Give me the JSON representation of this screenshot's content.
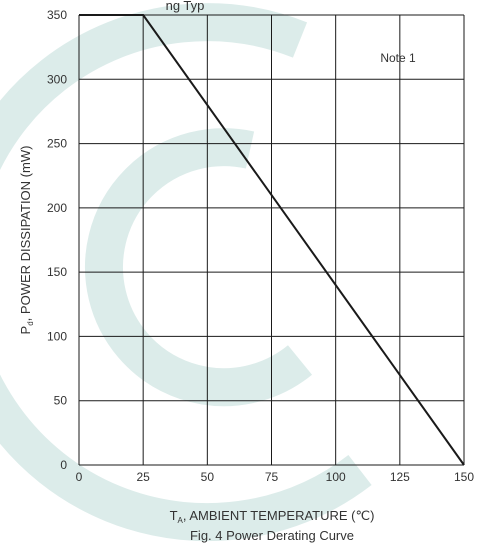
{
  "chart_data": {
    "type": "line",
    "xlim": [
      0,
      150
    ],
    "ylim": [
      0,
      350
    ],
    "x_ticks": [
      "0",
      "25",
      "50",
      "75",
      "100",
      "125",
      "150"
    ],
    "y_ticks": [
      "0",
      "50",
      "100",
      "150",
      "200",
      "250",
      "300",
      "350"
    ],
    "grid": true,
    "series": [
      {
        "x": [
          0,
          25,
          150
        ],
        "y": [
          350,
          350,
          0
        ]
      }
    ],
    "annotation": "Note 1",
    "top_text": "ng Typ",
    "ylabel_main": "P",
    "ylabel_sub": "d",
    "ylabel_rest": ", POWER DISSIPATION (mW)",
    "xlabel_main": "T",
    "xlabel_sub": "A",
    "xlabel_rest": ", AMBIENT TEMPERATURE (℃)",
    "caption": "Fig. 4  Power Derating Curve",
    "colors": {
      "line": "#1a1a1a",
      "grid": "#1a1a1a",
      "watermark": "#dcecea"
    }
  }
}
